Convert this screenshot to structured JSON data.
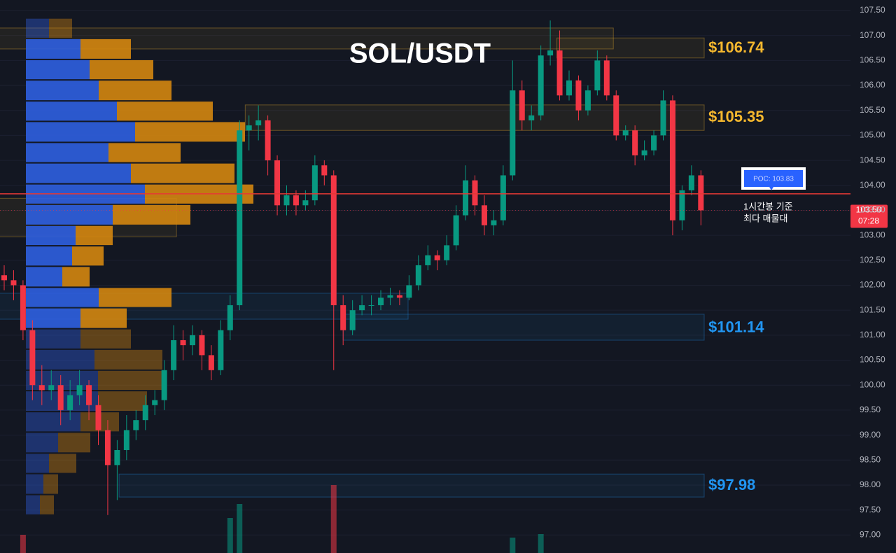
{
  "chart_data": {
    "type": "candlestick",
    "title": "SOL/USDT",
    "ylim": [
      96.64,
      107.71
    ],
    "yticks": [
      {
        "value": 97,
        "label": "97.00"
      },
      {
        "value": 97.5,
        "label": "97.50"
      },
      {
        "value": 98,
        "label": "98.00"
      },
      {
        "value": 98.5,
        "label": "98.50"
      },
      {
        "value": 99,
        "label": "99.00"
      },
      {
        "value": 99.5,
        "label": "99.50"
      },
      {
        "value": 100,
        "label": "100.00"
      },
      {
        "value": 100.5,
        "label": "100.50"
      },
      {
        "value": 101,
        "label": "101.00"
      },
      {
        "value": 101.5,
        "label": "101.50"
      },
      {
        "value": 102,
        "label": "102.00"
      },
      {
        "value": 102.5,
        "label": "102.50"
      },
      {
        "value": 103,
        "label": "103.00"
      },
      {
        "value": 103.5,
        "label": "103.50"
      },
      {
        "value": 104,
        "label": "104.00"
      },
      {
        "value": 104.5,
        "label": "104.50"
      },
      {
        "value": 105,
        "label": "105.00"
      },
      {
        "value": 105.5,
        "label": "105.50"
      },
      {
        "value": 106,
        "label": "106.00"
      },
      {
        "value": 106.5,
        "label": "106.50"
      },
      {
        "value": 107,
        "label": "107.00"
      },
      {
        "value": 107.5,
        "label": "107.50"
      }
    ],
    "grid": true,
    "up_color": "#089981",
    "down_color": "#f23645",
    "open": [
      102.2,
      102.1,
      102.0,
      101.1,
      100.0,
      99.9,
      100.0,
      99.5,
      99.8,
      100.0,
      99.6,
      99.1,
      98.4,
      98.7,
      99.1,
      99.3,
      99.6,
      99.7,
      100.3,
      100.9,
      100.8,
      101.0,
      100.6,
      100.3,
      101.1,
      101.6,
      105.1,
      105.2,
      105.3,
      104.5,
      103.6,
      103.8,
      103.6,
      103.7,
      104.4,
      104.2,
      101.6,
      101.1,
      101.5,
      101.6,
      101.6,
      101.75,
      101.8,
      101.75,
      102.0,
      102.4,
      102.6,
      102.5,
      102.8,
      103.4,
      104.1,
      103.6,
      103.2,
      103.3,
      104.2,
      105.9,
      105.3,
      105.4,
      106.6,
      106.7,
      105.8,
      106.1,
      105.5,
      105.9,
      106.5,
      105.8,
      105.0,
      105.1,
      104.6,
      104.7,
      105.0,
      105.7,
      103.3,
      103.9,
      104.2
    ],
    "high": [
      102.4,
      102.3,
      102.1,
      101.3,
      100.4,
      100.3,
      100.2,
      100.1,
      100.3,
      100.1,
      99.8,
      99.3,
      98.9,
      99.4,
      99.5,
      99.8,
      99.9,
      100.5,
      101.2,
      101.1,
      101.2,
      101.1,
      100.8,
      101.3,
      101.8,
      105.3,
      105.4,
      105.6,
      105.4,
      104.6,
      104.0,
      103.9,
      103.9,
      104.6,
      104.5,
      104.3,
      101.8,
      101.7,
      101.8,
      101.8,
      101.9,
      101.95,
      101.9,
      102.2,
      102.6,
      102.8,
      102.7,
      103.0,
      103.6,
      104.4,
      104.2,
      103.8,
      103.5,
      104.4,
      106.5,
      106.1,
      105.6,
      106.8,
      107.3,
      107.1,
      106.3,
      106.2,
      106.0,
      106.7,
      106.6,
      105.9,
      105.2,
      105.2,
      104.9,
      105.1,
      105.9,
      105.8,
      104.0,
      104.4,
      104.3
    ],
    "low": [
      101.9,
      101.7,
      100.9,
      99.7,
      99.6,
      99.7,
      99.2,
      99.3,
      99.6,
      99.3,
      98.8,
      97.4,
      97.7,
      98.5,
      98.9,
      99.1,
      99.4,
      99.5,
      100.1,
      100.5,
      100.6,
      100.3,
      100.1,
      100.2,
      100.9,
      101.5,
      104.7,
      104.9,
      104.2,
      103.4,
      103.4,
      103.4,
      103.5,
      103.6,
      104.0,
      100.3,
      100.8,
      101.0,
      101.4,
      101.4,
      101.5,
      101.6,
      101.6,
      101.7,
      101.9,
      102.3,
      102.3,
      102.4,
      102.7,
      103.3,
      103.4,
      103.0,
      103.0,
      103.2,
      104.1,
      105.1,
      105.1,
      105.3,
      106.4,
      105.7,
      105.7,
      105.3,
      105.4,
      105.8,
      105.7,
      104.9,
      104.9,
      104.4,
      104.5,
      104.6,
      104.9,
      103.0,
      103.1,
      103.8,
      103.2
    ],
    "close": [
      102.1,
      102.0,
      101.1,
      100.0,
      99.9,
      100.0,
      99.5,
      99.8,
      100.0,
      99.6,
      99.1,
      98.4,
      98.7,
      99.1,
      99.3,
      99.6,
      99.7,
      100.3,
      100.9,
      100.8,
      101.0,
      100.6,
      100.3,
      101.1,
      101.6,
      105.1,
      105.2,
      105.3,
      104.5,
      103.6,
      103.8,
      103.6,
      103.7,
      104.4,
      104.2,
      101.6,
      101.1,
      101.5,
      101.6,
      101.6,
      101.75,
      101.8,
      101.75,
      102.0,
      102.4,
      102.6,
      102.5,
      102.8,
      103.4,
      104.1,
      103.6,
      103.2,
      103.3,
      104.2,
      105.9,
      105.3,
      105.4,
      106.6,
      106.7,
      105.8,
      106.1,
      105.5,
      105.9,
      106.5,
      105.8,
      105.0,
      105.1,
      104.6,
      104.7,
      105.0,
      105.7,
      103.3,
      103.9,
      104.2,
      103.5
    ],
    "volume": [
      8,
      8,
      36,
      8,
      8,
      8,
      8,
      8,
      8,
      8,
      8,
      8,
      8,
      8,
      8,
      8,
      8,
      8,
      8,
      8,
      8,
      8,
      8,
      8,
      60,
      80,
      8,
      8,
      8,
      8,
      8,
      8,
      8,
      8,
      8,
      107,
      8,
      8,
      8,
      8,
      8,
      8,
      8,
      8,
      8,
      8,
      8,
      8,
      8,
      8,
      8,
      8,
      8,
      8,
      32,
      8,
      8,
      37,
      8,
      8,
      8,
      8,
      8,
      8,
      8,
      8,
      8,
      8,
      8,
      8,
      8,
      8,
      8,
      8,
      8
    ],
    "volume_profile": {
      "bins": [
        97.4,
        97.81,
        98.23,
        98.64,
        99.06,
        99.47,
        99.89,
        100.3,
        100.72,
        101.13,
        101.55,
        101.96,
        102.38,
        102.79,
        103.2,
        103.62,
        104.03,
        104.45,
        104.86,
        105.28,
        105.69,
        106.11,
        106.52,
        106.94,
        107.35
      ],
      "buy": [
        20,
        25,
        33,
        46,
        78,
        103,
        103,
        98,
        78,
        78,
        104,
        52,
        66,
        71,
        124,
        170,
        150,
        118,
        156,
        130,
        104,
        91,
        78,
        33
      ],
      "sell": [
        20,
        21,
        39,
        46,
        55,
        70,
        92,
        97,
        72,
        66,
        104,
        39,
        45,
        53,
        111,
        155,
        148,
        103,
        157,
        137,
        104,
        91,
        72,
        33
      ],
      "buy_color": "#2f5fe0",
      "sell_color": "#d4860f",
      "value_area": [
        101.13,
        106.94
      ]
    },
    "zones": [
      {
        "low": 106.73,
        "high": 107.15,
        "start": -0.5,
        "end": 64.7,
        "color": "#f5b82e"
      },
      {
        "low": 106.55,
        "high": 106.95,
        "start": 58.7,
        "end": 74.35,
        "color": "#f5b82e",
        "label": {
          "value": 106.74,
          "label": "$106.74"
        }
      },
      {
        "low": 105.1,
        "high": 105.61,
        "start": 25.6,
        "end": 74.35,
        "color": "#f5b82e",
        "label": {
          "value": 105.35,
          "label": "$105.35"
        }
      },
      {
        "low": 102.97,
        "high": 103.74,
        "start": -0.5,
        "end": 18.3,
        "color": "#f5b82e"
      },
      {
        "low": 101.32,
        "high": 101.84,
        "start": -0.5,
        "end": 42.9,
        "color": "#2196f3"
      },
      {
        "low": 100.9,
        "high": 101.42,
        "start": 36,
        "end": 74.35,
        "color": "#2196f3",
        "label": {
          "value": 101.14,
          "label": "$101.14"
        }
      },
      {
        "low": 97.76,
        "high": 98.22,
        "start": 12.2,
        "end": 74.35,
        "color": "#2196f3",
        "label": {
          "value": 97.98,
          "label": "$97.98"
        }
      }
    ],
    "poc": {
      "value": 103.83,
      "label": "POC: 103.83",
      "color": "#e53935"
    },
    "annotation": [
      "1시간봉 기준",
      "최다 매물대"
    ],
    "current_price": {
      "value": 103.5,
      "label": "103.50",
      "countdown": "07:28"
    }
  }
}
